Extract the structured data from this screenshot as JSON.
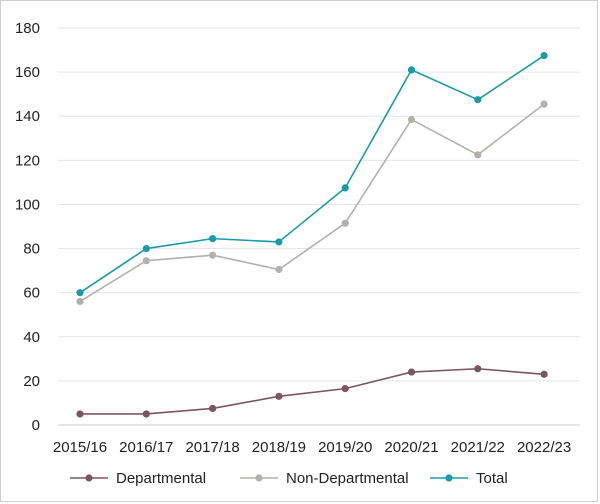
{
  "chart_data": {
    "type": "line",
    "categories": [
      "2015/16",
      "2016/17",
      "2017/18",
      "2018/19",
      "2019/20",
      "2020/21",
      "2021/22",
      "2022/23"
    ],
    "y_ticks": [
      0,
      20,
      40,
      60,
      80,
      100,
      120,
      140,
      160,
      180
    ],
    "ylim": [
      0,
      180
    ],
    "grid": true,
    "legend_position": "bottom",
    "series": [
      {
        "name": "Departmental",
        "color": "#7b5560",
        "values": [
          5,
          5,
          7.5,
          13,
          16.5,
          24,
          25.5,
          23
        ]
      },
      {
        "name": "Non-Departmental",
        "color": "#b4b0aa",
        "values": [
          56,
          74.5,
          77,
          70.5,
          91.5,
          138.5,
          122.5,
          145.5
        ]
      },
      {
        "name": "Total",
        "color": "#1a9aaa",
        "values": [
          60,
          80,
          84.5,
          83,
          107.5,
          161,
          147.5,
          167.5
        ]
      }
    ]
  }
}
